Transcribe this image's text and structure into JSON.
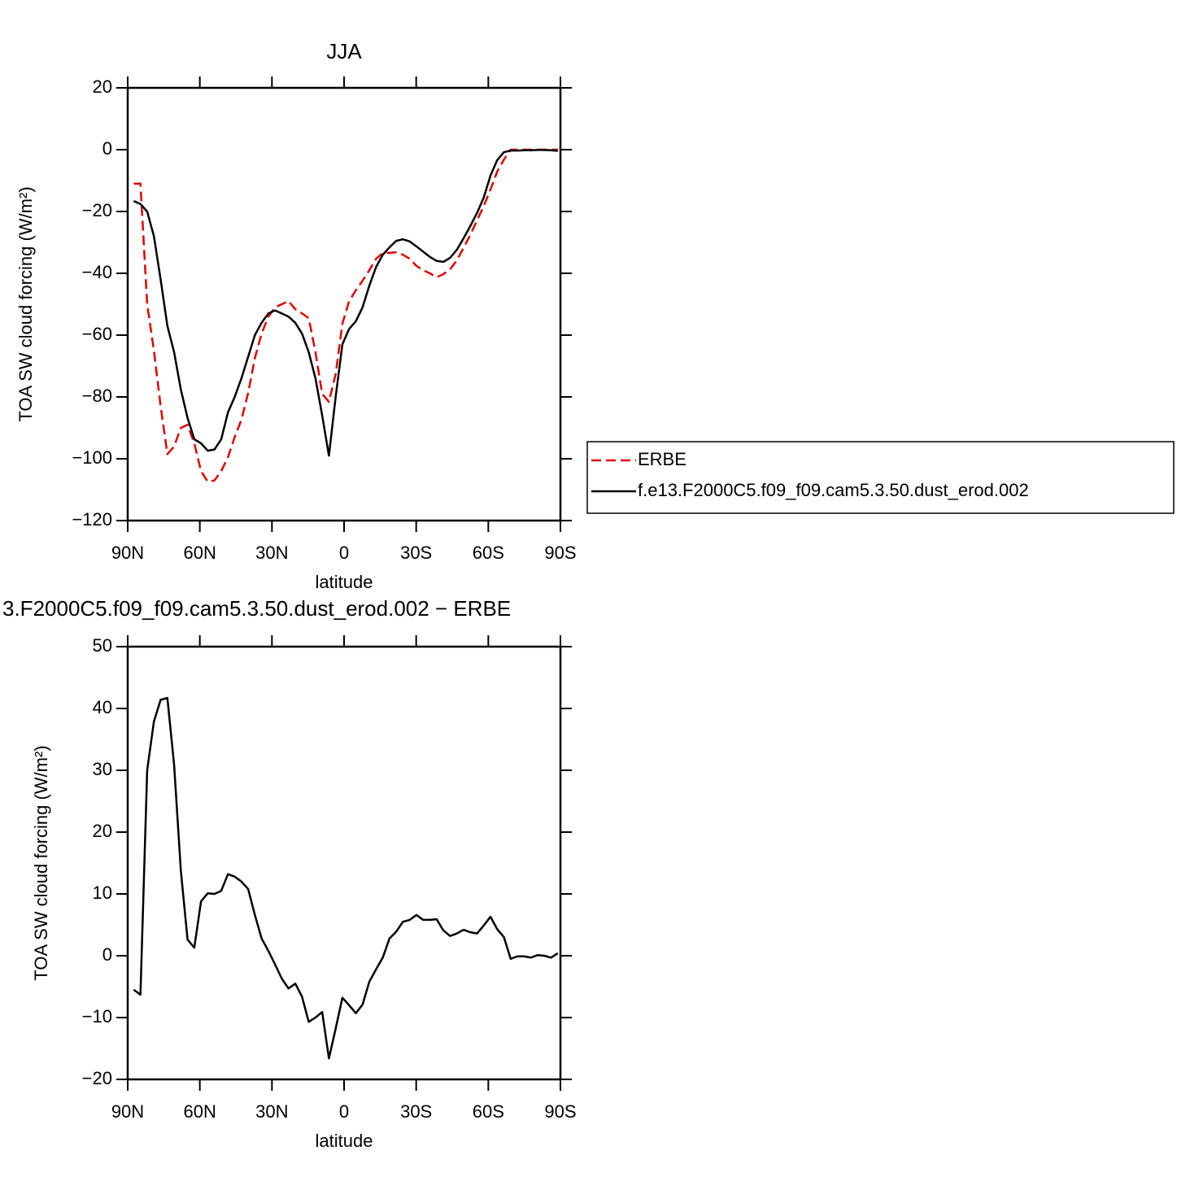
{
  "chart_data": [
    {
      "type": "line",
      "title": "JJA",
      "xlabel": "latitude",
      "ylabel": "TOA SW cloud forcing (W/m²)",
      "x": [
        87.5,
        84.7,
        81.9,
        79.1,
        76.3,
        73.5,
        70.7,
        67.9,
        65.1,
        62.3,
        59.5,
        56.7,
        53.9,
        51.1,
        48.3,
        45.5,
        42.7,
        39.9,
        37.1,
        34.3,
        31.5,
        28.7,
        25.9,
        23.1,
        20.3,
        17.5,
        14.7,
        11.9,
        9.1,
        6.3,
        3.5,
        0.7,
        -2.1,
        -4.9,
        -7.7,
        -10.5,
        -13.3,
        -16.1,
        -18.9,
        -21.7,
        -24.5,
        -27.3,
        -30.1,
        -32.9,
        -35.7,
        -38.5,
        -41.3,
        -44.1,
        -46.9,
        -49.7,
        -52.5,
        -55.3,
        -58.1,
        -60.9,
        -63.7,
        -66.5,
        -69.3,
        -72.1,
        -74.9,
        -77.7,
        -80.5,
        -83.3,
        -86.1,
        -88.9
      ],
      "series": [
        {
          "name": "ERBE",
          "color": "#e00000",
          "dash": true,
          "values": [
            -11,
            -11,
            -50,
            -65,
            -83,
            -98.5,
            -96,
            -90,
            -89,
            -95,
            -104,
            -107.4,
            -107,
            -104,
            -99.5,
            -93,
            -87.4,
            -78.7,
            -67.4,
            -59.5,
            -54,
            -51,
            -50,
            -49,
            -51.6,
            -53,
            -54.5,
            -65.5,
            -79,
            -81.6,
            -72.6,
            -56.3,
            -49,
            -45.5,
            -42.4,
            -39,
            -35.3,
            -33.4,
            -33.4,
            -33.2,
            -34,
            -35.3,
            -37.6,
            -39,
            -40,
            -41.3,
            -40.3,
            -38.7,
            -35.8,
            -31.8,
            -27.6,
            -22.9,
            -18.2,
            -12.9,
            -7.1,
            -3.2,
            0,
            0,
            0,
            0,
            0,
            0,
            0,
            0
          ]
        },
        {
          "name": "f.e13.F2000C5.f09_f09.cam5.3.50.dust_erod.002",
          "color": "#000000",
          "dash": false,
          "values": [
            -16.6,
            -17.6,
            -20,
            -28,
            -42,
            -57,
            -65.5,
            -77.6,
            -86.8,
            -93.7,
            -95,
            -97.4,
            -97,
            -93.7,
            -85,
            -80,
            -74,
            -67,
            -60,
            -56,
            -53,
            -52,
            -53,
            -54,
            -56,
            -59.5,
            -65.5,
            -74,
            -86,
            -99,
            -80,
            -63,
            -58,
            -55.5,
            -51,
            -44,
            -38,
            -34,
            -31.6,
            -29.5,
            -29,
            -29.7,
            -31.3,
            -33,
            -34.7,
            -36,
            -36.3,
            -35,
            -32.4,
            -28.7,
            -24.7,
            -20.5,
            -15.5,
            -8.4,
            -3.4,
            -0.8,
            -0.3,
            -0.3,
            -0.2,
            -0.2,
            -0.1,
            -0.1,
            -0.2,
            -0.4
          ]
        }
      ],
      "xlim": [
        90,
        -90
      ],
      "xticks": [
        {
          "value": 90,
          "label": "90N"
        },
        {
          "value": 60,
          "label": "60N"
        },
        {
          "value": 30,
          "label": "30N"
        },
        0,
        {
          "value": -30,
          "label": "30S"
        },
        {
          "value": -60,
          "label": "60S"
        },
        {
          "value": -90,
          "label": "90S"
        }
      ],
      "ylim": [
        -120,
        20
      ],
      "yticks": [
        20,
        0,
        {
          "value": -20,
          "label": "−20"
        },
        {
          "value": -40,
          "label": "−40"
        },
        {
          "value": -60,
          "label": "−60"
        },
        {
          "value": -80,
          "label": "−80"
        },
        {
          "value": -100,
          "label": "−100"
        },
        {
          "value": -120,
          "label": "−120"
        }
      ],
      "legend": "right"
    },
    {
      "type": "line",
      "title": "3.F2000C5.f09_f09.cam5.3.50.dust_erod.002 − ERBE",
      "xlabel": "latitude",
      "ylabel": "TOA SW cloud forcing (W/m²)",
      "x": [
        87.5,
        84.7,
        81.9,
        79.1,
        76.3,
        73.5,
        70.7,
        67.9,
        65.1,
        62.3,
        59.5,
        56.7,
        53.9,
        51.1,
        48.3,
        45.5,
        42.7,
        39.9,
        37.1,
        34.3,
        31.5,
        28.7,
        25.9,
        23.1,
        20.3,
        17.5,
        14.7,
        11.9,
        9.1,
        6.3,
        3.5,
        0.7,
        -2.1,
        -4.9,
        -7.7,
        -10.5,
        -13.3,
        -16.1,
        -18.9,
        -21.7,
        -24.5,
        -27.3,
        -30.1,
        -32.9,
        -35.7,
        -38.5,
        -41.3,
        -44.1,
        -46.9,
        -49.7,
        -52.5,
        -55.3,
        -58.1,
        -60.9,
        -63.7,
        -66.5,
        -69.3,
        -72.1,
        -74.9,
        -77.7,
        -80.5,
        -83.3,
        -86.1,
        -88.9
      ],
      "color": "#000000",
      "values": [
        -5.5,
        -6.3,
        30,
        37.9,
        41.4,
        41.7,
        30.9,
        13.8,
        2.6,
        1.3,
        8.8,
        10.1,
        10,
        10.5,
        13.2,
        12.8,
        12,
        10.8,
        6.6,
        2.8,
        0.8,
        -1.4,
        -3.7,
        -5.3,
        -4.5,
        -6.6,
        -10.7,
        -10,
        -9.1,
        -16.6,
        -11.8,
        -6.8,
        -8,
        -9.3,
        -7.9,
        -4.2,
        -2.2,
        -0.3,
        2.8,
        3.9,
        5.5,
        5.8,
        6.6,
        5.8,
        5.8,
        5.9,
        4.1,
        3.2,
        3.6,
        4.2,
        3.8,
        3.6,
        4.9,
        6.3,
        4.3,
        3,
        -0.5,
        -0.1,
        -0.1,
        -0.3,
        0.1,
        0,
        -0.3,
        0.4
      ],
      "xlim": [
        90,
        -90
      ],
      "xticks": [
        {
          "value": 90,
          "label": "90N"
        },
        {
          "value": 60,
          "label": "60N"
        },
        {
          "value": 30,
          "label": "30N"
        },
        0,
        {
          "value": -30,
          "label": "30S"
        },
        {
          "value": -60,
          "label": "60S"
        },
        {
          "value": -90,
          "label": "90S"
        }
      ],
      "ylim": [
        -20,
        50
      ],
      "yticks": [
        50,
        40,
        30,
        20,
        10,
        0,
        {
          "value": -10,
          "label": "−10"
        },
        {
          "value": -20,
          "label": "−20"
        }
      ]
    }
  ]
}
